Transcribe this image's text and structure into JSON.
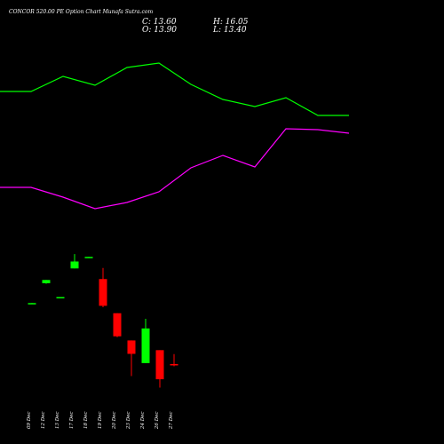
{
  "header": {
    "title": "CONCOR 520.00  PE Option  Chart Munafa Sutra.com",
    "close_label": "C: 13.60",
    "open_label": "O: 13.90",
    "high_label": "H: 16.05",
    "low_label": "L: 13.40"
  },
  "chart_data": {
    "type": "candlestick",
    "title": "CONCOR 520.00  PE Option  Chart Munafa Sutra.com",
    "categories": [
      "09 Dec",
      "12 Dec",
      "13 Dec",
      "17 Dec",
      "18 Dec",
      "19 Dec",
      "20 Dec",
      "23 Dec",
      "24 Dec",
      "26 Dec",
      "27 Dec"
    ],
    "candles": [
      {
        "open": 27.0,
        "high": 27.1,
        "low": 26.9,
        "close": 27.1,
        "color": "#00ff00"
      },
      {
        "open": 31.4,
        "high": 32.1,
        "low": 31.3,
        "close": 32.1,
        "color": "#00ff00"
      },
      {
        "open": 28.3,
        "high": 28.4,
        "low": 28.3,
        "close": 28.4,
        "color": "#00ff00"
      },
      {
        "open": 34.6,
        "high": 37.7,
        "low": 34.6,
        "close": 36.1,
        "color": "#00ff00"
      },
      {
        "open": 37.0,
        "high": 37.1,
        "low": 36.9,
        "close": 37.1,
        "color": "#00ff00"
      },
      {
        "open": 32.3,
        "high": 34.7,
        "low": 26.2,
        "close": 26.5,
        "color": "#ff0000"
      },
      {
        "open": 24.9,
        "high": 24.9,
        "low": 19.7,
        "close": 19.9,
        "color": "#ff0000"
      },
      {
        "open": 19.0,
        "high": 19.0,
        "low": 11.3,
        "close": 16.1,
        "color": "#ff0000"
      },
      {
        "open": 14.1,
        "high": 23.7,
        "low": 14.1,
        "close": 21.6,
        "color": "#00ff00"
      },
      {
        "open": 16.9,
        "high": 16.9,
        "low": 8.8,
        "close": 10.6,
        "color": "#ff0000"
      },
      {
        "open": 13.9,
        "high": 16.05,
        "low": 13.4,
        "close": 13.6,
        "color": "#ff0000"
      }
    ],
    "overlays": [
      {
        "color": "#00ff00",
        "values": [
          103.0,
          103.0,
          86.0,
          96.0,
          76.0,
          71.0,
          95.0,
          112.0,
          120.0,
          110.0,
          130.0,
          130.0
        ]
      },
      {
        "color": "#ff00ff",
        "values": [
          211.0,
          211.0,
          222.0,
          235.0,
          228.0,
          216.0,
          189.0,
          175.0,
          188.0,
          145.0,
          146.0,
          150.0
        ]
      }
    ],
    "xlabel": "",
    "ylabel": "",
    "grid": false
  }
}
